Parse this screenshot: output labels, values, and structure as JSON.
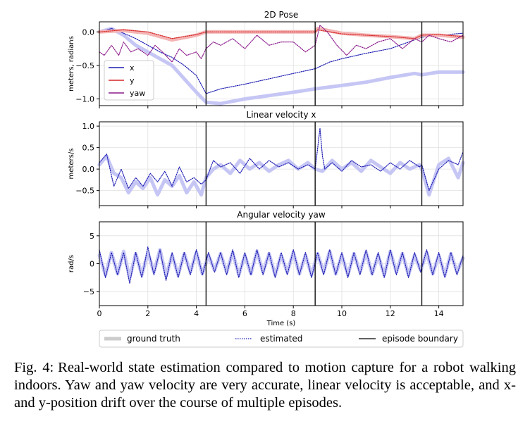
{
  "figure": {
    "xlabel": "Time (s)",
    "x_ticks": [
      0,
      2,
      4,
      6,
      8,
      10,
      12,
      14
    ],
    "xlim": [
      0,
      15
    ],
    "episode_boundaries": [
      4.4,
      8.9,
      13.3
    ],
    "legend": {
      "ground_truth": "ground truth",
      "estimated": "estimated",
      "episode_boundary": "episode boundary"
    },
    "style_colors": {
      "ground_truth_light": "#c6c6f5",
      "ground_truth_light_red": "#f4b4b4",
      "ground_truth_light_purple": "#e0b0e0",
      "blue": "#1f1fb4",
      "red": "#d62728",
      "purple": "#8b1a8b",
      "boundary": "#000000"
    }
  },
  "chart_data": [
    {
      "type": "line",
      "title": "2D Pose",
      "ylabel": "meters, radians",
      "ylim": [
        -1.1,
        0.15
      ],
      "y_ticks": [
        0.0,
        -0.5,
        -1.0
      ],
      "y_tick_labels": [
        "0.0",
        "−0.5",
        "−1.0"
      ],
      "grid": true,
      "legend_placement": "left",
      "series_legend": [
        {
          "name": "x",
          "color": "#1f1fb4"
        },
        {
          "name": "y",
          "color": "#d62728"
        },
        {
          "name": "yaw",
          "color": "#8b1a8b"
        }
      ],
      "series": [
        {
          "name": "x",
          "kind": "ground truth",
          "color": "#c6c6f5",
          "x": [
            0,
            0.5,
            1.0,
            1.5,
            2.0,
            2.5,
            3.0,
            3.5,
            4.0,
            4.4,
            5.0,
            6.0,
            7.0,
            8.0,
            8.9,
            10.0,
            11.0,
            12.0,
            13.0,
            13.3,
            14.0,
            15.0
          ],
          "y": [
            0.0,
            0.05,
            -0.05,
            -0.2,
            -0.3,
            -0.4,
            -0.5,
            -0.7,
            -0.9,
            -1.05,
            -1.07,
            -1.0,
            -0.95,
            -0.9,
            -0.85,
            -0.8,
            -0.75,
            -0.68,
            -0.62,
            -0.64,
            -0.6,
            -0.6
          ]
        },
        {
          "name": "x",
          "kind": "estimated",
          "color": "#1f1fb4",
          "x": [
            0,
            0.5,
            1.0,
            1.5,
            2.0,
            2.5,
            3.0,
            3.5,
            4.0,
            4.4,
            5.0,
            6.0,
            7.0,
            8.0,
            8.9,
            9.5,
            10.0,
            11.0,
            12.0,
            13.0,
            13.3,
            14.0,
            15.0
          ],
          "y": [
            0.0,
            0.05,
            -0.02,
            -0.1,
            -0.2,
            -0.3,
            -0.38,
            -0.5,
            -0.65,
            -0.92,
            -0.85,
            -0.78,
            -0.7,
            -0.62,
            -0.55,
            -0.45,
            -0.4,
            -0.32,
            -0.25,
            -0.12,
            -0.08,
            -0.05,
            -0.02
          ]
        },
        {
          "name": "y",
          "kind": "ground truth",
          "color": "#f4b4b4",
          "x": [
            0,
            1,
            2,
            3,
            4,
            4.4,
            5,
            6,
            7,
            8,
            8.9,
            9,
            10,
            11,
            12,
            13,
            13.3,
            14,
            15
          ],
          "y": [
            0.0,
            0.02,
            -0.02,
            -0.12,
            -0.05,
            0.0,
            0.0,
            0.0,
            0.0,
            0.0,
            0.0,
            0.05,
            -0.02,
            -0.05,
            -0.07,
            -0.1,
            -0.05,
            -0.05,
            -0.08
          ]
        },
        {
          "name": "y",
          "kind": "estimated",
          "color": "#d62728",
          "x": [
            0,
            1,
            2,
            3,
            4,
            4.4,
            5,
            6,
            7,
            8,
            8.9,
            9,
            10,
            11,
            12,
            13,
            13.3,
            14,
            15
          ],
          "y": [
            0.0,
            0.03,
            0.0,
            -0.1,
            -0.04,
            0.0,
            0.0,
            0.0,
            0.0,
            0.0,
            0.0,
            0.03,
            -0.03,
            -0.05,
            -0.07,
            -0.1,
            -0.05,
            -0.04,
            -0.07
          ]
        },
        {
          "name": "yaw",
          "kind": "estimated",
          "color": "#8b1a8b",
          "x": [
            0,
            0.2,
            0.5,
            0.8,
            1.0,
            1.3,
            1.6,
            2.0,
            2.3,
            2.6,
            3.0,
            3.3,
            3.6,
            4.0,
            4.2,
            4.4,
            4.7,
            5.0,
            5.5,
            6.0,
            6.5,
            7.0,
            7.5,
            8.0,
            8.5,
            8.9,
            9.1,
            9.4,
            9.8,
            10.2,
            10.6,
            11.0,
            11.5,
            12.0,
            12.5,
            13.0,
            13.3,
            13.6,
            14.0,
            14.5,
            15.0
          ],
          "y": [
            -0.3,
            -0.35,
            -0.2,
            -0.35,
            -0.15,
            -0.3,
            -0.25,
            -0.35,
            -0.2,
            -0.3,
            -0.45,
            -0.25,
            -0.35,
            -0.3,
            -0.4,
            -0.25,
            -0.15,
            -0.2,
            -0.1,
            -0.25,
            -0.05,
            -0.2,
            -0.15,
            -0.15,
            -0.3,
            -0.2,
            0.1,
            0.0,
            -0.2,
            -0.35,
            -0.2,
            -0.25,
            -0.15,
            -0.1,
            -0.25,
            -0.1,
            -0.15,
            -0.05,
            -0.1,
            -0.15,
            -0.05
          ]
        }
      ]
    },
    {
      "type": "line",
      "title": "Linear velocity x",
      "ylabel": "meters/s",
      "ylim": [
        -0.85,
        1.1
      ],
      "y_ticks": [
        1.0,
        0.5,
        0.0,
        -0.5
      ],
      "y_tick_labels": [
        "1.0",
        "0.5",
        "0.0",
        "−0.5"
      ],
      "grid": true,
      "series": [
        {
          "name": "linear velocity x",
          "kind": "ground truth",
          "color": "#c6c6f5",
          "x": [
            0,
            0.3,
            0.6,
            0.9,
            1.2,
            1.5,
            1.8,
            2.1,
            2.4,
            2.7,
            3.0,
            3.3,
            3.6,
            3.9,
            4.2,
            4.4,
            4.7,
            5.0,
            5.4,
            5.8,
            6.2,
            6.6,
            7.0,
            7.4,
            7.8,
            8.2,
            8.6,
            8.9,
            9.2,
            9.6,
            10.0,
            10.4,
            10.8,
            11.2,
            11.6,
            12.0,
            12.4,
            12.8,
            13.2,
            13.3,
            13.6,
            14.0,
            14.4,
            14.8,
            15.0
          ],
          "y": [
            0.1,
            0.3,
            -0.1,
            -0.2,
            -0.55,
            -0.3,
            -0.45,
            -0.2,
            -0.6,
            -0.25,
            -0.4,
            -0.15,
            -0.55,
            -0.3,
            -0.6,
            -0.2,
            0.0,
            0.1,
            -0.1,
            0.2,
            0.0,
            0.15,
            -0.05,
            0.1,
            0.2,
            0.0,
            0.15,
            0.0,
            -0.05,
            0.2,
            0.0,
            0.15,
            -0.05,
            0.2,
            0.05,
            -0.1,
            0.15,
            0.0,
            0.1,
            0.0,
            -0.6,
            0.1,
            0.25,
            -0.2,
            0.15
          ]
        },
        {
          "name": "linear velocity x",
          "kind": "estimated",
          "color": "#1f1fb4",
          "x": [
            0,
            0.3,
            0.6,
            0.9,
            1.2,
            1.5,
            1.8,
            2.1,
            2.4,
            2.7,
            3.0,
            3.3,
            3.6,
            3.9,
            4.2,
            4.4,
            4.7,
            5.0,
            5.4,
            5.8,
            6.2,
            6.6,
            7.0,
            7.4,
            7.8,
            8.2,
            8.6,
            8.9,
            9.1,
            9.2,
            9.3,
            9.6,
            10.0,
            10.4,
            10.8,
            11.2,
            11.6,
            12.0,
            12.4,
            12.8,
            13.2,
            13.3,
            13.6,
            14.0,
            14.4,
            14.8,
            15.0
          ],
          "y": [
            0.15,
            0.35,
            -0.4,
            0.0,
            -0.45,
            -0.2,
            -0.4,
            -0.1,
            -0.3,
            -0.05,
            -0.4,
            0.05,
            -0.3,
            -0.2,
            -0.35,
            -0.25,
            0.2,
            0.05,
            0.15,
            -0.1,
            0.25,
            0.0,
            0.2,
            0.05,
            0.15,
            0.0,
            0.1,
            0.0,
            0.95,
            0.3,
            0.0,
            0.15,
            -0.05,
            0.2,
            0.05,
            0.1,
            -0.05,
            0.15,
            0.0,
            0.2,
            0.05,
            0.1,
            -0.5,
            0.0,
            0.2,
            0.1,
            0.4
          ]
        }
      ]
    },
    {
      "type": "line",
      "title": "Angular velocity yaw",
      "ylabel": "rad/s",
      "ylim": [
        -7.5,
        7.5
      ],
      "y_ticks": [
        5,
        0,
        -5
      ],
      "y_tick_labels": [
        "5",
        "0",
        "−5"
      ],
      "grid": true,
      "series": [
        {
          "name": "angular velocity yaw",
          "kind": "ground truth",
          "color": "#c6c6f5",
          "x": [
            0,
            0.25,
            0.5,
            0.75,
            1.0,
            1.25,
            1.5,
            1.75,
            2.0,
            2.25,
            2.5,
            2.75,
            3.0,
            3.25,
            3.5,
            3.75,
            4.0,
            4.25,
            4.5,
            4.75,
            5.0,
            5.25,
            5.5,
            5.75,
            6.0,
            6.25,
            6.5,
            6.75,
            7.0,
            7.25,
            7.5,
            7.75,
            8.0,
            8.25,
            8.5,
            8.75,
            9.0,
            9.25,
            9.5,
            9.75,
            10.0,
            10.25,
            10.5,
            10.75,
            11.0,
            11.25,
            11.5,
            11.75,
            12.0,
            12.25,
            12.5,
            12.75,
            13.0,
            13.25,
            13.5,
            13.75,
            14.0,
            14.25,
            14.5,
            14.75,
            15.0
          ],
          "y": [
            1.5,
            -2.0,
            2.0,
            -1.8,
            2.2,
            -2.5,
            1.8,
            -2.0,
            2.0,
            -1.5,
            2.5,
            -2.2,
            1.5,
            -2.0,
            1.8,
            -1.5,
            2.0,
            -1.8,
            1.5,
            -1.2,
            1.8,
            -1.5,
            2.0,
            -2.0,
            1.5,
            -1.8,
            2.2,
            -1.5,
            1.8,
            -2.0,
            1.5,
            -1.5,
            2.0,
            -1.8,
            1.5,
            -2.0,
            1.8,
            -1.5,
            2.2,
            -1.8,
            1.5,
            -2.0,
            1.8,
            -1.5,
            2.0,
            -1.8,
            1.5,
            -2.0,
            2.2,
            -1.5,
            1.8,
            -2.0,
            1.5,
            -1.2,
            2.0,
            -1.8,
            1.5,
            -2.0,
            1.8,
            -1.5,
            1.0
          ]
        },
        {
          "name": "angular velocity yaw",
          "kind": "estimated",
          "color": "#1f1fb4",
          "x": [
            0,
            0.25,
            0.5,
            0.75,
            1.0,
            1.25,
            1.5,
            1.75,
            2.0,
            2.25,
            2.5,
            2.75,
            3.0,
            3.25,
            3.5,
            3.75,
            4.0,
            4.25,
            4.5,
            4.75,
            5.0,
            5.25,
            5.5,
            5.75,
            6.0,
            6.25,
            6.5,
            6.75,
            7.0,
            7.25,
            7.5,
            7.75,
            8.0,
            8.25,
            8.5,
            8.75,
            9.0,
            9.25,
            9.5,
            9.75,
            10.0,
            10.25,
            10.5,
            10.75,
            11.0,
            11.25,
            11.5,
            11.75,
            12.0,
            12.25,
            12.5,
            12.75,
            13.0,
            13.25,
            13.5,
            13.75,
            14.0,
            14.25,
            14.5,
            14.75,
            15.0
          ],
          "y": [
            2.5,
            -2.5,
            2.0,
            -2.0,
            2.0,
            -3.5,
            2.0,
            -2.5,
            3.0,
            -2.0,
            2.5,
            -3.0,
            2.0,
            -2.5,
            2.0,
            -2.0,
            2.5,
            -2.0,
            2.0,
            -1.5,
            2.0,
            -2.0,
            2.5,
            -2.5,
            2.0,
            -2.0,
            2.5,
            -2.0,
            2.0,
            -2.5,
            2.0,
            -2.0,
            2.5,
            -2.0,
            2.0,
            -2.5,
            2.0,
            -2.0,
            2.5,
            -2.0,
            2.0,
            -2.5,
            2.0,
            -2.0,
            2.5,
            -2.0,
            2.0,
            -2.5,
            2.5,
            -2.0,
            2.0,
            -2.5,
            2.0,
            -1.5,
            2.5,
            -2.0,
            2.0,
            -2.5,
            2.0,
            -2.0,
            1.5
          ]
        }
      ]
    }
  ],
  "caption": {
    "label": "Fig. 4:",
    "text": "Real-world state estimation compared to motion capture for a robot walking indoors. Yaw and yaw velocity are very accurate, linear velocity is acceptable, and x- and y-position drift over the course of multiple episodes."
  }
}
